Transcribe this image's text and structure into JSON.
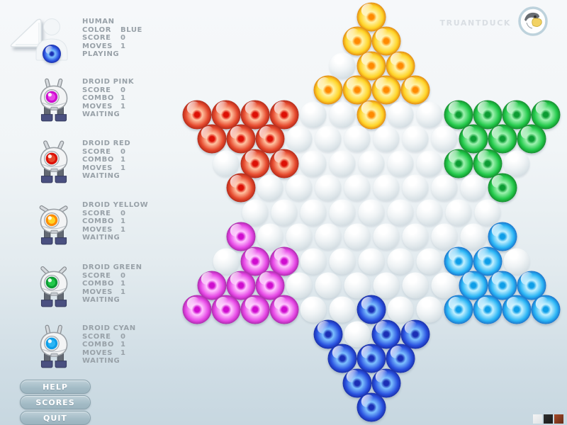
{
  "window": {
    "logo_text": "TRUANTDUCK"
  },
  "players": [
    {
      "name": "HUMAN",
      "icon": "human",
      "marble": "B",
      "status": "PLAYING",
      "stats": [
        {
          "label": "COLOR",
          "value": "BLUE"
        },
        {
          "label": "SCORE",
          "value": "0"
        },
        {
          "label": "MOVES",
          "value": "1"
        }
      ]
    },
    {
      "name": "DROID PINK",
      "icon": "droid",
      "marble": "M",
      "status": "WAITING",
      "stats": [
        {
          "label": "SCORE",
          "value": "0"
        },
        {
          "label": "COMBO",
          "value": "1"
        },
        {
          "label": "MOVES",
          "value": "1"
        }
      ]
    },
    {
      "name": "DROID RED",
      "icon": "droid",
      "marble": "R",
      "status": "WAITING",
      "stats": [
        {
          "label": "SCORE",
          "value": "0"
        },
        {
          "label": "COMBO",
          "value": "1"
        },
        {
          "label": "MOVES",
          "value": "1"
        }
      ]
    },
    {
      "name": "DROID YELLOW",
      "icon": "droid",
      "marble": "Y",
      "status": "WAITING",
      "stats": [
        {
          "label": "SCORE",
          "value": "0"
        },
        {
          "label": "COMBO",
          "value": "1"
        },
        {
          "label": "MOVES",
          "value": "1"
        }
      ]
    },
    {
      "name": "DROID GREEN",
      "icon": "droid",
      "marble": "G",
      "status": "WAITING",
      "stats": [
        {
          "label": "SCORE",
          "value": "0"
        },
        {
          "label": "COMBO",
          "value": "1"
        },
        {
          "label": "MOVES",
          "value": "1"
        }
      ]
    },
    {
      "name": "DROID CYAN",
      "icon": "droid",
      "marble": "C",
      "status": "WAITING",
      "stats": [
        {
          "label": "SCORE",
          "value": "0"
        },
        {
          "label": "COMBO",
          "value": "1"
        },
        {
          "label": "MOVES",
          "value": "1"
        }
      ]
    }
  ],
  "menu_buttons": [
    {
      "label": "HELP"
    },
    {
      "label": "SCORES"
    },
    {
      "label": "QUIT"
    }
  ],
  "board": {
    "rows": [
      "Y",
      "YY",
      ".YY",
      "YYYY",
      "RRRR..Y..GGGG",
      "RRR......GGG",
      ".RR.....GG.",
      "R........G",
      ".........",
      "M........C",
      ".MM.....CC.",
      "MMM......CCC",
      "MMMM..B..CCCC",
      "B.BB",
      "BBB",
      "BB",
      "B"
    ],
    "marble_colors": {
      "Y": {
        "name": "yellow",
        "rim": "#c43a00",
        "body": "#ffd427",
        "light": "#fff3a6",
        "dot": "#ff8a00"
      },
      "R": {
        "name": "red",
        "rim": "#7c0a06",
        "body": "#e64a2e",
        "light": "#ffc2a0",
        "dot": "#dd1005"
      },
      "G": {
        "name": "green",
        "rim": "#0a4d12",
        "body": "#22c94a",
        "light": "#9ef2b0",
        "dot": "#0c9c33"
      },
      "M": {
        "name": "magenta",
        "rim": "#6e0d6e",
        "body": "#e648e6",
        "light": "#ffc6ff",
        "dot": "#cf0ccf"
      },
      "C": {
        "name": "cyan",
        "rim": "#0d2f9e",
        "body": "#2ab5f5",
        "light": "#c2f0ff",
        "dot": "#0e9ee8"
      },
      "B": {
        "name": "blue",
        "rim": "#0a0a6e",
        "body": "#2a52e0",
        "light": "#7cc0ff",
        "dot": "#1b2fb5"
      }
    },
    "hole_color": "#dfe7eb"
  },
  "swatches": [
    {
      "name": "white",
      "color": "#f4f4f4"
    },
    {
      "name": "black",
      "color": "#2e2e2e"
    },
    {
      "name": "rust",
      "color": "#a84a28"
    }
  ]
}
